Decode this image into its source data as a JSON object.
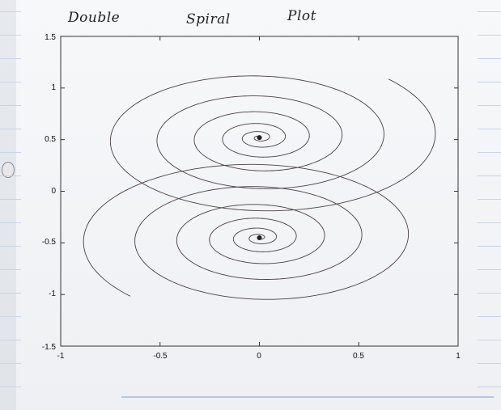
{
  "title_words": [
    "Double",
    "Spiral",
    "Plot"
  ],
  "chart_data": {
    "type": "line",
    "title": "Double Spiral Plot",
    "xlabel": "",
    "ylabel": "",
    "xlim": [
      -1,
      1
    ],
    "ylim": [
      -1.5,
      1.5
    ],
    "x_ticks": [
      "-1",
      "-0.5",
      "0",
      "0.5",
      "1"
    ],
    "y_ticks": [
      "1.5",
      "1",
      "0.5",
      "0",
      "-0.5",
      "-1",
      "-1.5"
    ],
    "grid": false,
    "legend": "none",
    "line_color": "#4a3f45",
    "series": [
      {
        "center": [
          0,
          0.52
        ],
        "radius_x": 0.92,
        "radius_y": 0.8,
        "turns": 7,
        "max_turn_end": "upper-right"
      },
      {
        "center": [
          0,
          -0.45
        ],
        "radius_x": 0.92,
        "radius_y": 0.8,
        "turns": 7,
        "max_turn_end": "lower-left"
      }
    ]
  }
}
